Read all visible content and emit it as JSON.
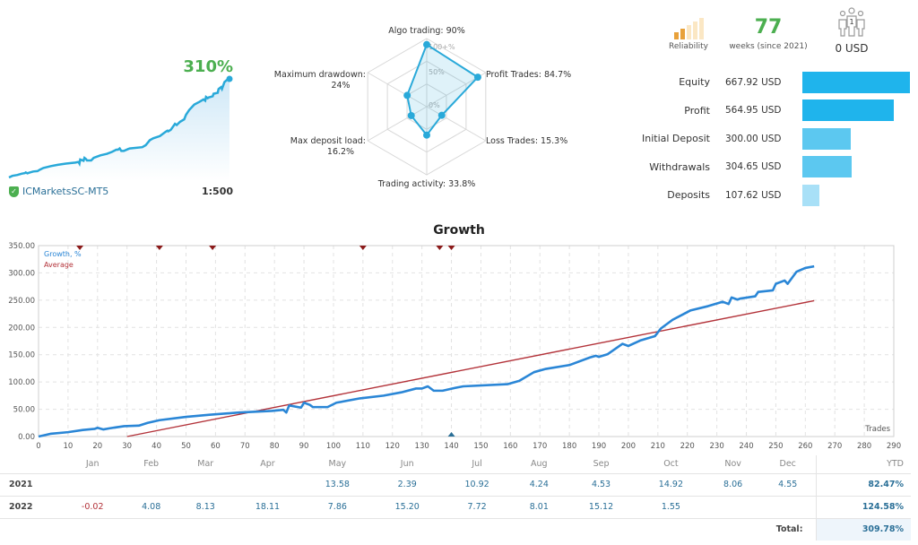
{
  "summary": {
    "growth_pct": "310%",
    "broker": "ICMarketsSC-MT5",
    "leverage": "1:500",
    "sparkline_color": "#29a9d9"
  },
  "radar": {
    "scale_labels": [
      "100+%",
      "50%",
      "0%"
    ],
    "axes": [
      {
        "label": "Algo trading: 90%",
        "value": 90
      },
      {
        "label": "Profit Trades: 84.7%",
        "value": 84.7
      },
      {
        "label": "Loss Trades: 15.3%",
        "value": 15.3
      },
      {
        "label": "Trading activity: 33.8%",
        "value": 33.8
      },
      {
        "label": "Max deposit load:",
        "label2": "16.2%",
        "value": 16.2
      },
      {
        "label": "Maximum drawdown:",
        "label2": "24%",
        "value": 24
      }
    ]
  },
  "reliability": {
    "label": "Reliability",
    "level": 2,
    "of": 5,
    "color": "#e8a13a"
  },
  "weeks": {
    "value": "77",
    "label": "weeks (since 2021)"
  },
  "investors": {
    "icon": "investors-icon",
    "count": "1",
    "amount": "0 USD"
  },
  "balances": [
    {
      "label": "Equity",
      "value": "667.92 USD",
      "amount": 667.92,
      "color": "#1fb4ec"
    },
    {
      "label": "Profit",
      "value": "564.95 USD",
      "amount": 564.95,
      "color": "#1fb4ec"
    },
    {
      "label": "Initial Deposit",
      "value": "300.00 USD",
      "amount": 300.0,
      "color": "#5cc8f0"
    },
    {
      "label": "Withdrawals",
      "value": "304.65 USD",
      "amount": 304.65,
      "color": "#5cc8f0"
    },
    {
      "label": "Deposits",
      "value": "107.62 USD",
      "amount": 107.62,
      "color": "#a8e0f7"
    }
  ],
  "chart_data": {
    "type": "line",
    "title": "Growth",
    "xlabel": "Trades",
    "ylabel": "",
    "xlim": [
      0,
      290
    ],
    "ylim": [
      0,
      350
    ],
    "grid": true,
    "legend": "top-left",
    "xticks": [
      0,
      10,
      20,
      30,
      40,
      50,
      60,
      70,
      80,
      90,
      100,
      110,
      120,
      130,
      140,
      150,
      160,
      170,
      180,
      190,
      200,
      210,
      220,
      230,
      240,
      250,
      260,
      270,
      280,
      290
    ],
    "yticks": [
      "0.00",
      "50.00",
      "100.00",
      "150.00",
      "200.00",
      "250.00",
      "300.00",
      "350.00"
    ],
    "series": [
      {
        "name": "Growth, %",
        "color": "#2a86d6",
        "points": [
          [
            0,
            0
          ],
          [
            4,
            5
          ],
          [
            10,
            8
          ],
          [
            15,
            12
          ],
          [
            19,
            14
          ],
          [
            20,
            16
          ],
          [
            22,
            13
          ],
          [
            24,
            15
          ],
          [
            29,
            19
          ],
          [
            34,
            20
          ],
          [
            37,
            25
          ],
          [
            41,
            30
          ],
          [
            50,
            36
          ],
          [
            58,
            40
          ],
          [
            68,
            44
          ],
          [
            79,
            47
          ],
          [
            83,
            49
          ],
          [
            84,
            44
          ],
          [
            85,
            57
          ],
          [
            89,
            53
          ],
          [
            90,
            62
          ],
          [
            92,
            58
          ],
          [
            93,
            54
          ],
          [
            98,
            54
          ],
          [
            101,
            62
          ],
          [
            109,
            70
          ],
          [
            117,
            75
          ],
          [
            123,
            81
          ],
          [
            128,
            88
          ],
          [
            130,
            88
          ],
          [
            132,
            92
          ],
          [
            134,
            84
          ],
          [
            137,
            84
          ],
          [
            142,
            90
          ],
          [
            144,
            92
          ],
          [
            159,
            96
          ],
          [
            163,
            102
          ],
          [
            168,
            118
          ],
          [
            172,
            124
          ],
          [
            180,
            131
          ],
          [
            187,
            145
          ],
          [
            189,
            148
          ],
          [
            190,
            146
          ],
          [
            193,
            151
          ],
          [
            198,
            170
          ],
          [
            200,
            166
          ],
          [
            204,
            176
          ],
          [
            209,
            184
          ],
          [
            211,
            198
          ],
          [
            215,
            214
          ],
          [
            221,
            231
          ],
          [
            227,
            239
          ],
          [
            232,
            247
          ],
          [
            234,
            243
          ],
          [
            235,
            255
          ],
          [
            237,
            251
          ],
          [
            238,
            253
          ],
          [
            243,
            257
          ],
          [
            244,
            265
          ],
          [
            249,
            268
          ],
          [
            250,
            280
          ],
          [
            253,
            286
          ],
          [
            254,
            280
          ],
          [
            257,
            302
          ],
          [
            260,
            309
          ],
          [
            263,
            312
          ]
        ]
      },
      {
        "name": "Average",
        "color": "#b3333a",
        "points": [
          [
            30,
            0
          ],
          [
            263,
            249
          ]
        ]
      }
    ],
    "markers": {
      "top_red": [
        14,
        41,
        59,
        110,
        136,
        140
      ],
      "bottom_blue": [
        140
      ]
    }
  },
  "monthly": {
    "headers": [
      "",
      "Jan",
      "Feb",
      "Mar",
      "Apr",
      "May",
      "Jun",
      "Jul",
      "Aug",
      "Sep",
      "Oct",
      "Nov",
      "Dec",
      "YTD"
    ],
    "rows": [
      {
        "year": "2021",
        "values": [
          "",
          "",
          "",
          "",
          "13.58",
          "2.39",
          "10.92",
          "4.24",
          "4.53",
          "14.92",
          "8.06",
          "4.55"
        ],
        "ytd": "82.47%"
      },
      {
        "year": "2022",
        "values": [
          "-0.02",
          "4.08",
          "8.13",
          "18.11",
          "7.86",
          "15.20",
          "7.72",
          "8.01",
          "15.12",
          "1.55",
          "",
          ""
        ],
        "ytd": "124.58%"
      }
    ],
    "total_label": "Total:",
    "total": "309.78%"
  }
}
